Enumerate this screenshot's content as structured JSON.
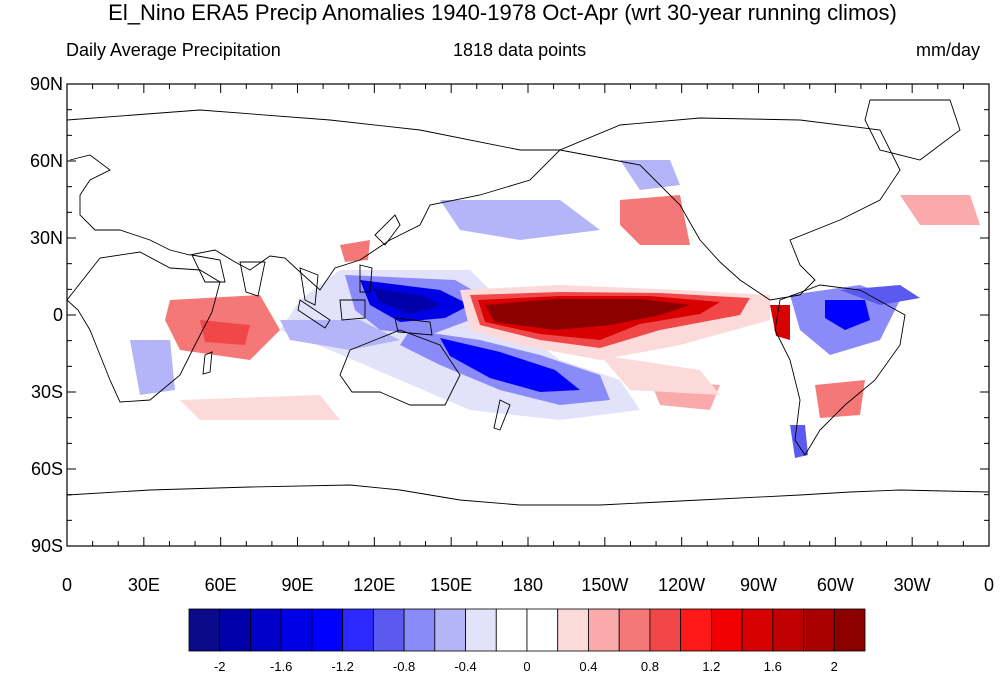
{
  "title": "El_Nino ERA5 Precip Anomalies 1940-1978 Oct-Apr (wrt 30-year running climos)",
  "subtitle_left": "Daily Average Precipitation",
  "subtitle_center": "1818 data points",
  "subtitle_right": "mm/day",
  "lat_labels": [
    "90N",
    "60N",
    "30N",
    "0",
    "30S",
    "60S",
    "90S"
  ],
  "lon_labels": [
    "0",
    "30E",
    "60E",
    "90E",
    "120E",
    "150E",
    "180",
    "150W",
    "120W",
    "90W",
    "60W",
    "30W",
    "0"
  ],
  "colorbar": {
    "colors": [
      "#0a0a8a",
      "#0000a8",
      "#0000c8",
      "#0000e6",
      "#0000ff",
      "#2a2aff",
      "#5a5af0",
      "#8a8af8",
      "#b4b4f8",
      "#e2e2fa",
      "#ffffff",
      "#ffffff",
      "#fcdada",
      "#faaaaa",
      "#f57878",
      "#f04848",
      "#ff1818",
      "#f00000",
      "#d80000",
      "#c00000",
      "#a80000",
      "#8c0000"
    ],
    "labels": [
      "-2",
      "-1.6",
      "-1.2",
      "-0.8",
      "-0.4",
      "0",
      "0.4",
      "0.8",
      "1.2",
      "1.6",
      "2"
    ]
  }
}
